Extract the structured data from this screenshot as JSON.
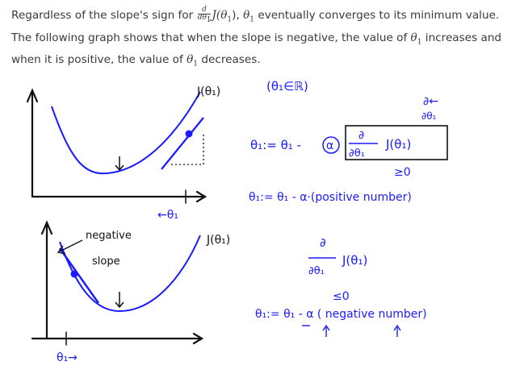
{
  "intro": {
    "p1": "Regardless of the slope's sign for ",
    "frac_num": "d",
    "frac_den_var": "dθ",
    "frac_den_sub": "1",
    "func": "J(θ",
    "func_sub": "1",
    "func_close": "), ",
    "theta": "θ",
    "theta_sub": "1",
    "p2": " eventually converges to its minimum value. The following graph shows that when the slope is negative, the value of ",
    "p3_theta": "θ",
    "p3_sub": "1",
    "p3": " increases and when it is positive, the value of ",
    "p4_theta": "θ",
    "p4_sub": "1",
    "p4": " decreases."
  },
  "board": {
    "top_ylabel": "J(θ₁)",
    "top_set": "(θ₁∈ℝ)",
    "partial": "∂←",
    "partial_den": "∂θ₁",
    "update_lhs": "θ₁:= θ₁ -",
    "alpha": "α",
    "box_num": "∂",
    "box_den": "∂θ₁",
    "box_J": "J(θ₁)",
    "geq0": "≥0",
    "update2": "θ₁:= θ₁ - α·(positive number)",
    "top_xlabel": "←θ₁",
    "bottom_neg": "negative",
    "bottom_slope": "slope",
    "bottom_ylabel": "J(θ₁)",
    "deriv_num": "∂",
    "deriv_den": "∂θ₁",
    "deriv_J": "J(θ₁)",
    "leq0": "≤0",
    "update3": "θ₁:= θ₁ - α ( negative number)",
    "bottom_xlabel": "θ₁→"
  },
  "colors": {
    "ink_blue": "#1a1aff",
    "ink_black": "#111111",
    "text": "#3a3a3a"
  }
}
